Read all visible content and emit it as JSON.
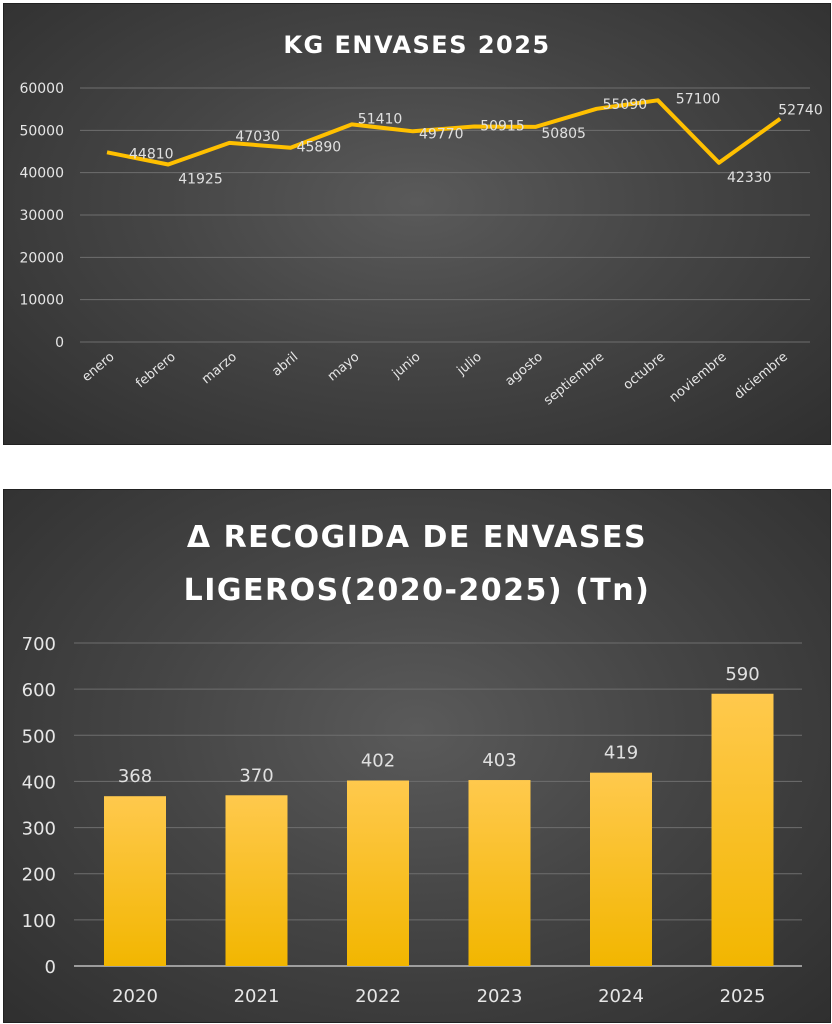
{
  "chart_data": [
    {
      "type": "line",
      "title": "KG ENVASES 2025",
      "categories": [
        "enero",
        "febrero",
        "marzo",
        "abril",
        "mayo",
        "junio",
        "julio",
        "agosto",
        "septiembre",
        "octubre",
        "noviembre",
        "diciembre"
      ],
      "series": [
        {
          "values": [
            44810,
            41925,
            47030,
            45890,
            51410,
            49770,
            50915,
            50805,
            55090,
            57100,
            42330,
            52740
          ],
          "data_labels": [
            "44810",
            "41925",
            "47030",
            "45890",
            "51410",
            "49770",
            "50915",
            "50805",
            "55090",
            "57100",
            "42330",
            "52740"
          ]
        }
      ],
      "y_ticks": [
        "0",
        "10000",
        "20000",
        "30000",
        "40000",
        "50000",
        "60000"
      ],
      "ylim": [
        0,
        60000
      ],
      "grid": true,
      "line_color": "#FFC000"
    },
    {
      "type": "bar",
      "title_lines": [
        "Δ RECOGIDA DE ENVASES",
        "LIGEROS(2020-2025) (Tn)"
      ],
      "categories": [
        "2020",
        "2021",
        "2022",
        "2023",
        "2024",
        "2025"
      ],
      "values": [
        368,
        370,
        402,
        403,
        419,
        590
      ],
      "data_labels": [
        "368",
        "370",
        "402",
        "403",
        "419",
        "590"
      ],
      "y_ticks": [
        "0",
        "100",
        "200",
        "300",
        "400",
        "500",
        "600",
        "700"
      ],
      "ylim": [
        0,
        700
      ],
      "grid": true,
      "bar_color_top": "#FFC94D",
      "bar_color_bottom": "#F2B600"
    }
  ]
}
